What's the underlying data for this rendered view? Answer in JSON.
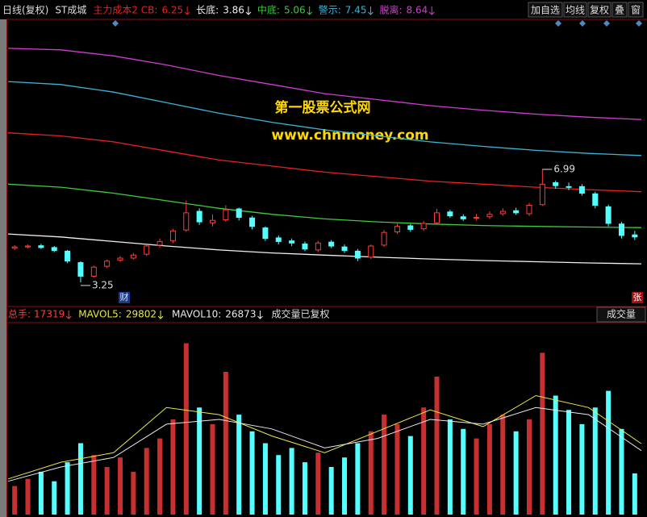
{
  "toolbar": {
    "period": "日线(复权)",
    "stock": "ST成城",
    "buttons": [
      "加自选",
      "均线",
      "复权",
      "叠",
      "窗"
    ]
  },
  "watermark": {
    "title": "第一股票公式网",
    "url": "www.chnmoney.com"
  },
  "chart_data": [
    {
      "type": "candlestick",
      "open": [
        4.38,
        4.42,
        4.46,
        4.4,
        4.28,
        3.9,
        3.45,
        3.78,
        3.98,
        4.05,
        4.18,
        4.48,
        4.62,
        4.98,
        5.6,
        5.22,
        5.32,
        5.68,
        5.38,
        5.05,
        4.72,
        4.62,
        4.52,
        4.32,
        4.58,
        4.42,
        4.28,
        4.08,
        4.48,
        4.92,
        5.12,
        5.02,
        5.22,
        5.58,
        5.42,
        5.38,
        5.42,
        5.52,
        5.62,
        5.52,
        5.82,
        6.55,
        6.42,
        6.42,
        6.18,
        5.75,
        5.18,
        4.82
      ],
      "high": [
        4.48,
        4.5,
        4.52,
        4.45,
        4.32,
        3.95,
        3.8,
        4.0,
        4.12,
        4.22,
        4.5,
        4.7,
        5.02,
        5.95,
        5.7,
        5.5,
        5.8,
        5.72,
        5.45,
        5.1,
        4.8,
        4.7,
        4.6,
        4.62,
        4.65,
        4.5,
        4.35,
        4.5,
        4.98,
        5.2,
        5.18,
        5.28,
        5.68,
        5.65,
        5.5,
        5.52,
        5.6,
        5.7,
        5.72,
        5.88,
        6.99,
        6.62,
        6.55,
        6.5,
        6.25,
        5.82,
        5.25,
        4.95
      ],
      "low": [
        4.32,
        4.37,
        4.35,
        4.25,
        3.88,
        3.25,
        3.4,
        3.72,
        3.92,
        4.0,
        4.12,
        4.4,
        4.55,
        4.92,
        5.15,
        5.1,
        5.25,
        5.3,
        5.0,
        4.62,
        4.5,
        4.45,
        4.28,
        4.25,
        4.38,
        4.22,
        3.95,
        4.02,
        4.42,
        4.85,
        4.92,
        4.95,
        5.15,
        5.38,
        5.28,
        5.3,
        5.35,
        5.45,
        5.48,
        5.45,
        5.78,
        6.35,
        6.3,
        6.12,
        5.7,
        5.1,
        4.7,
        4.65
      ],
      "close": [
        4.42,
        4.45,
        4.4,
        4.3,
        3.95,
        3.45,
        3.75,
        3.95,
        4.05,
        4.15,
        4.45,
        4.6,
        4.95,
        5.55,
        5.25,
        5.3,
        5.65,
        5.4,
        5.1,
        4.7,
        4.6,
        4.55,
        4.35,
        4.55,
        4.45,
        4.3,
        4.05,
        4.45,
        4.9,
        5.1,
        5.0,
        5.2,
        5.55,
        5.45,
        5.35,
        5.4,
        5.5,
        5.6,
        5.55,
        5.8,
        6.5,
        6.45,
        6.4,
        6.2,
        5.8,
        5.2,
        4.8,
        4.75
      ],
      "up_color": "#ff3c3c",
      "down_color": "#54ffff",
      "ylim": [
        2.5,
        11.8
      ],
      "series": [
        {
          "name": "主力成本2 CB:",
          "color": "#e82020",
          "values": [
            8.2,
            8.1,
            7.9,
            7.6,
            7.3,
            7.1,
            6.9,
            6.75,
            6.6,
            6.5,
            6.4,
            6.32,
            6.25
          ]
        },
        {
          "name": "长底:",
          "color": "#f0f0f0",
          "values": [
            4.85,
            4.75,
            4.6,
            4.45,
            4.32,
            4.22,
            4.15,
            4.08,
            4.02,
            3.97,
            3.93,
            3.89,
            3.86
          ]
        },
        {
          "name": "中底:",
          "color": "#3ccc3c",
          "values": [
            6.5,
            6.4,
            6.2,
            5.95,
            5.7,
            5.5,
            5.35,
            5.25,
            5.18,
            5.13,
            5.1,
            5.08,
            5.06
          ]
        },
        {
          "name": "警示:",
          "color": "#3cb4d8",
          "values": [
            9.9,
            9.8,
            9.55,
            9.2,
            8.85,
            8.55,
            8.3,
            8.1,
            7.9,
            7.75,
            7.62,
            7.52,
            7.45
          ]
        },
        {
          "name": "脱离:",
          "color": "#d23cd2",
          "values": [
            11.0,
            10.95,
            10.75,
            10.45,
            10.1,
            9.8,
            9.5,
            9.3,
            9.1,
            8.95,
            8.82,
            8.72,
            8.64
          ]
        }
      ],
      "markers": [
        "财",
        "张"
      ]
    },
    {
      "type": "bar",
      "title": "成交量",
      "label": "总手:",
      "note": "成交量已复权",
      "values": [
        12000,
        15000,
        18000,
        14000,
        22000,
        30000,
        25000,
        20000,
        24000,
        18000,
        28000,
        32000,
        40000,
        72000,
        45000,
        38000,
        60000,
        42000,
        35000,
        30000,
        25000,
        28000,
        22000,
        26000,
        20000,
        24000,
        30000,
        35000,
        42000,
        38000,
        33000,
        45000,
        58000,
        40000,
        36000,
        32000,
        38000,
        42000,
        35000,
        40000,
        68000,
        50000,
        44000,
        38000,
        45000,
        52000,
        36000,
        17319
      ],
      "ylim": [
        0,
        80000
      ],
      "series": [
        {
          "name": "MAVOL5:",
          "color": "#e8e84a",
          "values": [
            15000,
            22000,
            26000,
            45000,
            42000,
            33000,
            26000,
            35000,
            44000,
            37000,
            50000,
            45000,
            29802
          ]
        },
        {
          "name": "MAVOL10:",
          "color": "#e8e8e8",
          "values": [
            14000,
            20000,
            24000,
            38000,
            40000,
            36000,
            28000,
            32000,
            40000,
            38000,
            45000,
            42000,
            26873
          ]
        }
      ]
    }
  ]
}
